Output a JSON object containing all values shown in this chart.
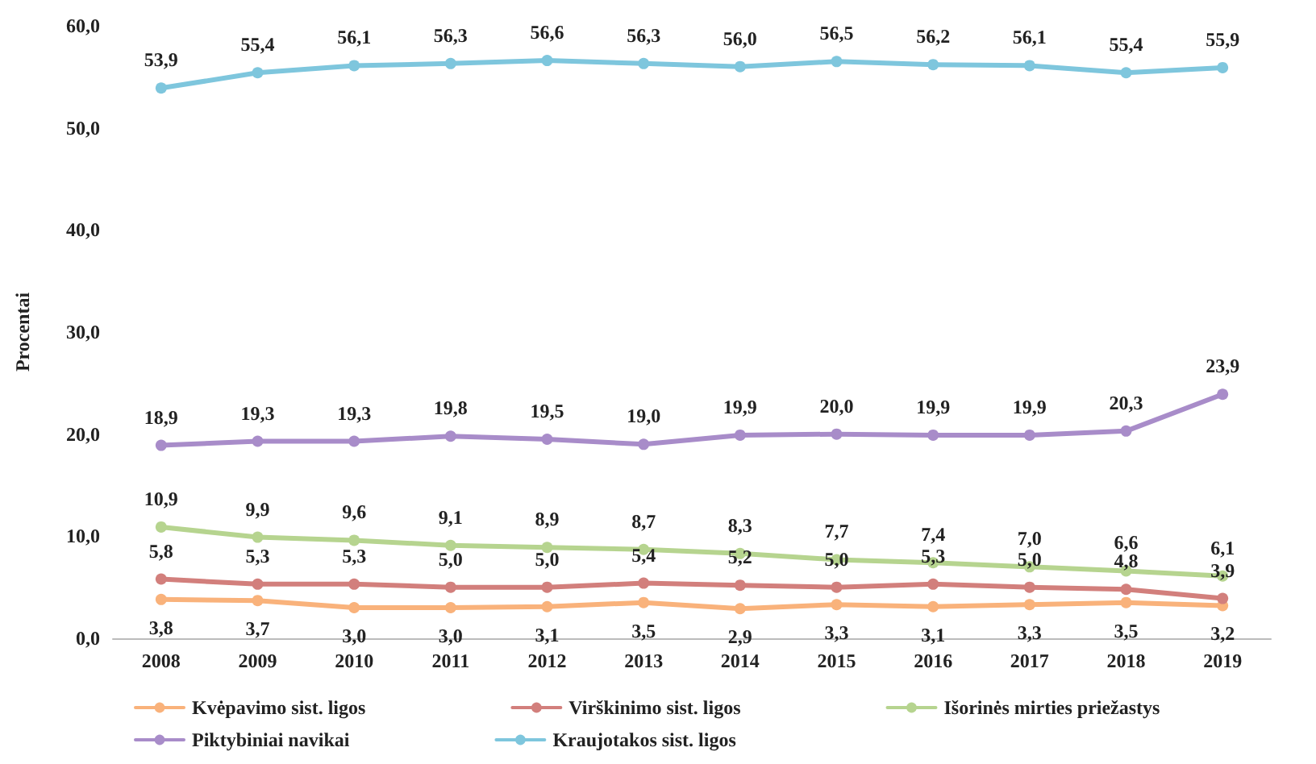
{
  "chart_data": {
    "type": "line",
    "ylabel": "Procentai",
    "categories": [
      "2008",
      "2009",
      "2010",
      "2011",
      "2012",
      "2013",
      "2014",
      "2015",
      "2016",
      "2017",
      "2018",
      "2019"
    ],
    "ylim": [
      0,
      60
    ],
    "yticks": [
      {
        "value": 0,
        "label": "0,0"
      },
      {
        "value": 10,
        "label": "10,0"
      },
      {
        "value": 20,
        "label": "20,0"
      },
      {
        "value": 30,
        "label": "30,0"
      },
      {
        "value": 40,
        "label": "40,0"
      },
      {
        "value": 50,
        "label": "50,0"
      },
      {
        "value": 60,
        "label": "60,0"
      }
    ],
    "grid": false,
    "legend": "bottom",
    "marker": "circle",
    "line_style": "solid",
    "series": [
      {
        "name": "Kvėpavimo sist. ligos",
        "color": "#f9b27b",
        "values": [
          3.8,
          3.7,
          3.0,
          3.0,
          3.1,
          3.5,
          2.9,
          3.3,
          3.1,
          3.3,
          3.5,
          3.2
        ],
        "value_labels": [
          "3,8",
          "3,7",
          "3,0",
          "3,0",
          "3,1",
          "3,5",
          "2,9",
          "3,3",
          "3,1",
          "3,3",
          "3,5",
          "3,2"
        ]
      },
      {
        "name": "Virškinimo sist. ligos",
        "color": "#d27f7c",
        "values": [
          5.8,
          5.3,
          5.3,
          5.0,
          5.0,
          5.4,
          5.2,
          5.0,
          5.3,
          5.0,
          4.8,
          3.9
        ],
        "value_labels": [
          "5,8",
          "5,3",
          "5,3",
          "5,0",
          "5,0",
          "5,4",
          "5,2",
          "5,0",
          "5,3",
          "5,0",
          "4,8",
          "3,9"
        ]
      },
      {
        "name": "Išorinės mirties priežastys",
        "color": "#b6d48f",
        "values": [
          10.9,
          9.9,
          9.6,
          9.1,
          8.9,
          8.7,
          8.3,
          7.7,
          7.4,
          7.0,
          6.6,
          6.1
        ],
        "value_labels": [
          "10,9",
          "9,9",
          "9,6",
          "9,1",
          "8,9",
          "8,7",
          "8,3",
          "7,7",
          "7,4",
          "7,0",
          "6,6",
          "6,1"
        ]
      },
      {
        "name": "Piktybiniai navikai",
        "color": "#a88cc9",
        "values": [
          18.9,
          19.3,
          19.3,
          19.8,
          19.5,
          19.0,
          19.9,
          20.0,
          19.9,
          19.9,
          20.3,
          23.9
        ],
        "value_labels": [
          "18,9",
          "19,3",
          "19,3",
          "19,8",
          "19,5",
          "19,0",
          "19,9",
          "20,0",
          "19,9",
          "19,9",
          "20,3",
          "23,9"
        ]
      },
      {
        "name": "Kraujotakos sist. ligos",
        "color": "#7ec6dd",
        "values": [
          53.9,
          55.4,
          56.1,
          56.3,
          56.6,
          56.3,
          56.0,
          56.5,
          56.2,
          56.1,
          55.4,
          55.9
        ],
        "value_labels": [
          "53,9",
          "55,4",
          "56,1",
          "56,3",
          "56,6",
          "56,3",
          "56,0",
          "56,5",
          "56,2",
          "56,1",
          "55,4",
          "55,9"
        ]
      }
    ]
  }
}
